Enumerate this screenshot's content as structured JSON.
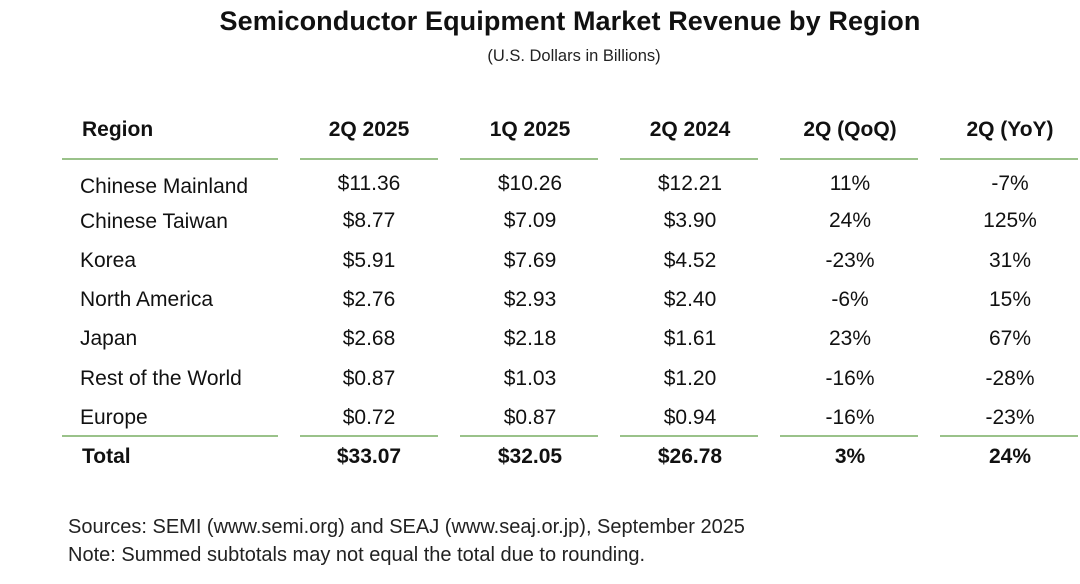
{
  "title": "Semiconductor Equipment Market Revenue by Region",
  "subtitle": "(U.S. Dollars in Billions)",
  "table": {
    "headers": [
      "Region",
      "2Q 2025",
      "1Q 2025",
      "2Q 2024",
      "2Q (QoQ)",
      "2Q (YoY)"
    ],
    "rows": [
      [
        "Chinese Mainland",
        "$11.36",
        "$10.26",
        "$12.21",
        "11%",
        "-7%"
      ],
      [
        "Chinese Taiwan",
        "$8.77",
        "$7.09",
        "$3.90",
        "24%",
        "125%"
      ],
      [
        "Korea",
        "$5.91",
        "$7.69",
        "$4.52",
        "-23%",
        "31%"
      ],
      [
        "North America",
        "$2.76",
        "$2.93",
        "$2.40",
        "-6%",
        "15%"
      ],
      [
        "Japan",
        "$2.68",
        "$2.18",
        "$1.61",
        "23%",
        "67%"
      ],
      [
        "Rest of the World",
        "$0.87",
        "$1.03",
        "$1.20",
        "-16%",
        "-28%"
      ],
      [
        "Europe",
        "$0.72",
        "$0.87",
        "$0.94",
        "-16%",
        "-23%"
      ]
    ],
    "total": [
      "Total",
      "$33.07",
      "$32.05",
      "$26.78",
      "3%",
      "24%"
    ]
  },
  "sources": "Sources: SEMI (www.semi.org) and SEAJ (www.seaj.or.jp), September 2025",
  "note": "Note: Summed subtotals may not equal the total due to rounding.",
  "colors": {
    "rule": "#9ac28a"
  }
}
